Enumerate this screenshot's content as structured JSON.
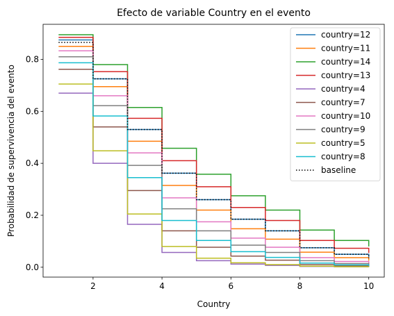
{
  "chart_data": {
    "type": "line",
    "drawstyle": "steps-post",
    "title": "Efecto de variable Country en el evento",
    "xlabel": "Country",
    "ylabel": "Probabilidad de supervivencia del evento",
    "xlim": [
      0.55,
      10.45
    ],
    "ylim": [
      -0.038,
      0.935
    ],
    "xticks": [
      2,
      4,
      6,
      8,
      10
    ],
    "yticks": [
      0.0,
      0.2,
      0.4,
      0.6,
      0.8
    ],
    "xtick_labels": [
      "2",
      "4",
      "6",
      "8",
      "10"
    ],
    "ytick_labels": [
      "0.0",
      "0.2",
      "0.4",
      "0.6",
      "0.8"
    ],
    "grid": false,
    "legend_position": "top-right",
    "x": [
      1,
      2,
      3,
      4,
      5,
      6,
      7,
      8,
      9,
      10
    ],
    "series": [
      {
        "name": "country=12",
        "color": "#1f77b4",
        "style": "solid",
        "values": [
          0.875,
          0.725,
          0.53,
          0.362,
          0.26,
          0.185,
          0.14,
          0.075,
          0.05,
          0.035
        ]
      },
      {
        "name": "country=11",
        "color": "#ff7f0e",
        "style": "solid",
        "values": [
          0.85,
          0.695,
          0.485,
          0.315,
          0.22,
          0.148,
          0.108,
          0.058,
          0.037,
          0.025
        ]
      },
      {
        "name": "country=14",
        "color": "#2ca02c",
        "style": "solid",
        "values": [
          0.895,
          0.78,
          0.615,
          0.458,
          0.358,
          0.275,
          0.22,
          0.143,
          0.103,
          0.08
        ]
      },
      {
        "name": "country=13",
        "color": "#d62728",
        "style": "solid",
        "values": [
          0.885,
          0.753,
          0.573,
          0.41,
          0.31,
          0.23,
          0.18,
          0.103,
          0.073,
          0.055
        ]
      },
      {
        "name": "country=4",
        "color": "#9467bd",
        "style": "solid",
        "values": [
          0.67,
          0.4,
          0.165,
          0.057,
          0.025,
          0.012,
          0.007,
          0.003,
          0.002,
          0.001
        ]
      },
      {
        "name": "country=7",
        "color": "#8c564b",
        "style": "solid",
        "values": [
          0.762,
          0.54,
          0.295,
          0.14,
          0.077,
          0.043,
          0.027,
          0.01,
          0.005,
          0.003
        ]
      },
      {
        "name": "country=10",
        "color": "#e377c2",
        "style": "solid",
        "values": [
          0.833,
          0.66,
          0.44,
          0.267,
          0.175,
          0.112,
          0.077,
          0.037,
          0.022,
          0.014
        ]
      },
      {
        "name": "country=9",
        "color": "#7f7f7f",
        "style": "solid",
        "values": [
          0.81,
          0.622,
          0.392,
          0.225,
          0.14,
          0.085,
          0.057,
          0.025,
          0.014,
          0.009
        ]
      },
      {
        "name": "country=5",
        "color": "#bcbd22",
        "style": "solid",
        "values": [
          0.705,
          0.448,
          0.205,
          0.08,
          0.035,
          0.017,
          0.01,
          0.004,
          0.002,
          0.001
        ]
      },
      {
        "name": "country=8",
        "color": "#17becf",
        "style": "solid",
        "values": [
          0.787,
          0.582,
          0.345,
          0.18,
          0.103,
          0.06,
          0.038,
          0.016,
          0.009,
          0.005
        ]
      },
      {
        "name": "baseline",
        "color": "#000000",
        "style": "dotted",
        "values": [
          0.865,
          0.725,
          0.53,
          0.362,
          0.26,
          0.185,
          0.14,
          0.075,
          0.05,
          0.035
        ]
      }
    ]
  }
}
